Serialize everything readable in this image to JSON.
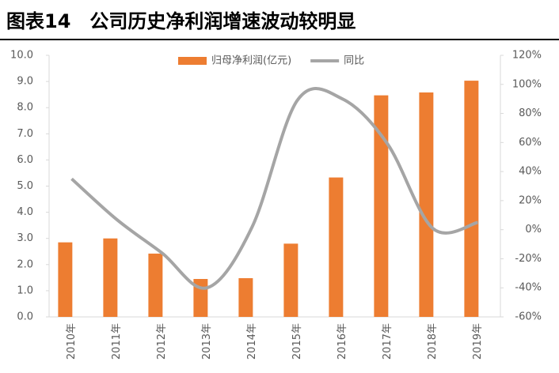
{
  "chart_data": {
    "type": "bar-line",
    "title": "图表14　公司历史净利润增速波动较明显",
    "categories": [
      "2010年",
      "2011年",
      "2012年",
      "2013年",
      "2014年",
      "2015年",
      "2016年",
      "2017年",
      "2018年",
      "2019年"
    ],
    "series": [
      {
        "name": "归母净利润(亿元)",
        "color": "#ed7d31",
        "type": "bar",
        "values": [
          2.85,
          3.0,
          2.42,
          1.45,
          1.48,
          2.8,
          5.33,
          8.47,
          8.58,
          9.03
        ]
      },
      {
        "name": "同比",
        "color": "#a5a5a5",
        "type": "line",
        "axis": "y2",
        "values": [
          35,
          7,
          -16,
          -40,
          2,
          89,
          90,
          59,
          1,
          5
        ]
      }
    ],
    "ylim": [
      0,
      10
    ],
    "yticks": [
      {
        "value": 0,
        "label": "0.0"
      },
      {
        "value": 1,
        "label": "1.0"
      },
      {
        "value": 2,
        "label": "2.0"
      },
      {
        "value": 3,
        "label": "3.0"
      },
      {
        "value": 4,
        "label": "4.0"
      },
      {
        "value": 5,
        "label": "5.0"
      },
      {
        "value": 6,
        "label": "6.0"
      },
      {
        "value": 7,
        "label": "7.0"
      },
      {
        "value": 8,
        "label": "8.0"
      },
      {
        "value": 9,
        "label": "9.0"
      },
      {
        "value": 10,
        "label": "10.0"
      }
    ],
    "y2lim": [
      -60,
      120
    ],
    "y2ticks": [
      {
        "value": -60,
        "label": "-60%"
      },
      {
        "value": -40,
        "label": "-40%"
      },
      {
        "value": -20,
        "label": "-20%"
      },
      {
        "value": 0,
        "label": "0%"
      },
      {
        "value": 20,
        "label": "20%"
      },
      {
        "value": 40,
        "label": "40%"
      },
      {
        "value": 60,
        "label": "60%"
      },
      {
        "value": 80,
        "label": "80%"
      },
      {
        "value": 100,
        "label": "100%"
      },
      {
        "value": 120,
        "label": "120%"
      }
    ],
    "legend": "top"
  }
}
